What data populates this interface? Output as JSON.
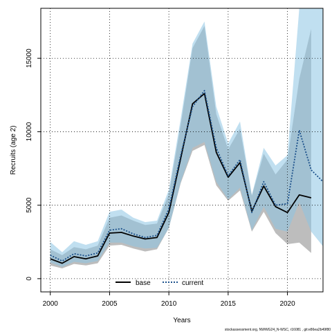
{
  "chart_data": {
    "type": "line",
    "title": "",
    "xlabel": "Years",
    "ylabel": "Recruits (age 2)",
    "xlim": [
      1999.2,
      2023.0
    ],
    "ylim": [
      -900,
      18400
    ],
    "xticks": [
      2000,
      2005,
      2010,
      2015,
      2020
    ],
    "yticks": [
      0,
      5000,
      10000,
      15000
    ],
    "grid": true,
    "legend_position": "bottom-center",
    "series": [
      {
        "name": "base",
        "color": "#000000",
        "band_color": "#999999",
        "line_style": "solid",
        "x": [
          2000,
          2001,
          2002,
          2003,
          2004,
          2005,
          2006,
          2007,
          2008,
          2009,
          2010,
          2011,
          2012,
          2013,
          2014,
          2015,
          2016,
          2017,
          2018,
          2019,
          2020,
          2021,
          2022
        ],
        "values": [
          1350,
          1050,
          1500,
          1350,
          1550,
          3100,
          3150,
          2900,
          2700,
          2800,
          4500,
          8200,
          11900,
          12600,
          8600,
          6900,
          7900,
          4600,
          6300,
          4900,
          4500,
          5700,
          5500
        ],
        "upper": [
          2000,
          1600,
          2150,
          2000,
          2250,
          4150,
          4300,
          3950,
          3650,
          3750,
          5750,
          10500,
          15700,
          17200,
          11200,
          8800,
          10200,
          5650,
          8500,
          7100,
          8100,
          13600,
          17000
        ],
        "lower": [
          900,
          700,
          1000,
          900,
          1050,
          2250,
          2300,
          2050,
          1850,
          2000,
          3450,
          6500,
          8700,
          9100,
          6350,
          5300,
          6000,
          3200,
          4550,
          3100,
          2350,
          2450,
          1750
        ]
      },
      {
        "name": "current",
        "color": "#1a4f8a",
        "band_color": "#8cc4e3",
        "line_style": "dotted",
        "x": [
          2000,
          2001,
          2002,
          2003,
          2004,
          2005,
          2006,
          2007,
          2008,
          2009,
          2010,
          2011,
          2012,
          2013,
          2014,
          2015,
          2016,
          2017,
          2018,
          2019,
          2020,
          2021,
          2022,
          2023
        ],
        "values": [
          1600,
          1200,
          1700,
          1550,
          1750,
          3300,
          3400,
          3050,
          2800,
          2950,
          4750,
          8400,
          11700,
          12800,
          8900,
          7000,
          8100,
          4500,
          6600,
          5000,
          5100,
          10100,
          7400,
          6600
        ],
        "upper": [
          2500,
          1800,
          2550,
          2300,
          2550,
          4550,
          4700,
          4150,
          3850,
          3950,
          6050,
          10900,
          16000,
          17500,
          11700,
          9200,
          10700,
          5700,
          8900,
          7700,
          8400,
          18400,
          18400,
          18400
        ],
        "lower": [
          1100,
          800,
          1150,
          1050,
          1200,
          2450,
          2450,
          2200,
          2050,
          2100,
          3450,
          6600,
          8900,
          9300,
          6600,
          5400,
          6200,
          3300,
          4900,
          3400,
          3200,
          5200,
          3200,
          2200
        ]
      }
    ],
    "footer": "stockassessment.org, NWWG24_N-WSC, r16081 , git:e86ea2b49f80"
  }
}
